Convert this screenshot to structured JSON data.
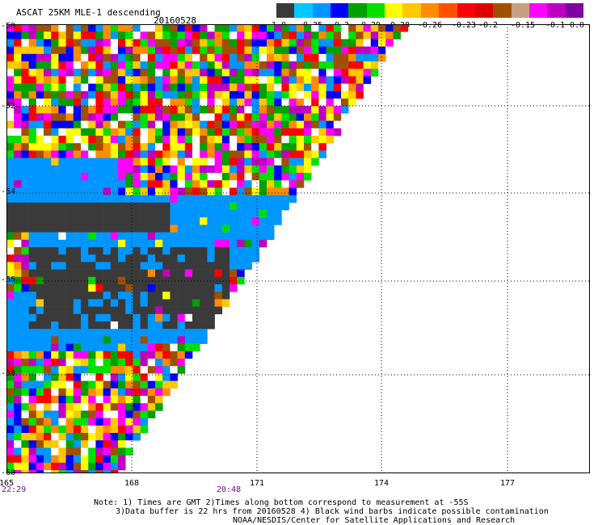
{
  "header": {
    "title": "ASCAT 25KM MLE-1 descending",
    "date": "20160528"
  },
  "colorbar": {
    "colors": [
      "#3a3a3a",
      "#00c8ff",
      "#0096ff",
      "#0000ff",
      "#00a000",
      "#00e000",
      "#ffff00",
      "#ffc800",
      "#ff8c00",
      "#ff5000",
      "#ff0000",
      "#e00000",
      "#a05000",
      "#c8a080",
      "#ff00ff",
      "#c000c0",
      "#8000a0"
    ],
    "labels": [
      "-1.0",
      "-0.35",
      "-0.3",
      "-0.29",
      "-0.28",
      "-0.26",
      "-0.23",
      "-0.2",
      "-0.15",
      "-0.1",
      "0.0"
    ]
  },
  "map": {
    "lat_labels": [
      "-50",
      "-52",
      "-54",
      "-56",
      "-58",
      "-60"
    ],
    "lon_labels": [
      "165",
      "168",
      "171",
      "174",
      "177"
    ],
    "time_labels": [
      "22:29",
      "20:48"
    ]
  },
  "notes": {
    "line1": "Note: 1) Times are GMT 2)Times along bottom correspond to measurement at -55S",
    "line2": "3)Data buffer is 22 hrs from 20160528 4) Black wind barbs indicate possible contamination",
    "line3": "NOAA/NESDIS/Center for Satellite Applications and Research"
  }
}
